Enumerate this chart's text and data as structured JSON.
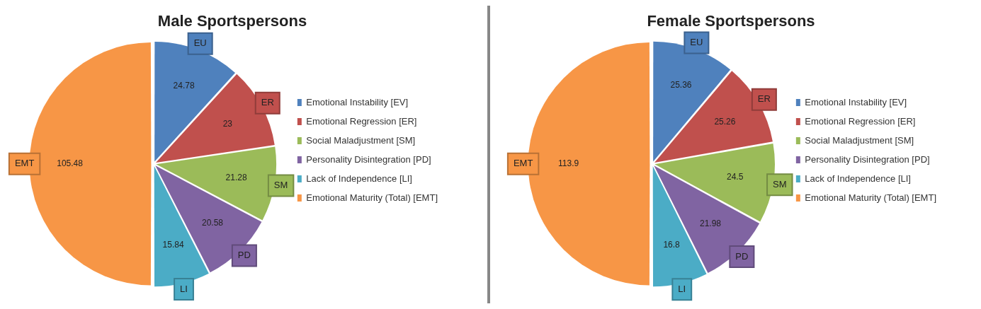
{
  "chart_data": [
    {
      "type": "pie",
      "title": "Male Sportspersons",
      "categories": [
        "Emotional Instability [EV]",
        "Emotional Regression [ER]",
        "Social Maladjustment [SM]",
        "Personality Disintegration [PD]",
        "Lack of Independence [LI]",
        "Emotional Maturity (Total) [EMT]"
      ],
      "values": [
        24.78,
        23,
        21.28,
        20.58,
        15.84,
        105.48
      ],
      "colors": [
        "#4f81bd",
        "#c0504d",
        "#9bbb59",
        "#8064a2",
        "#4bacc6",
        "#f79646"
      ],
      "annotations": [
        "EU",
        "ER",
        "SM",
        "PD",
        "LI",
        "EMT"
      ],
      "data_labels": true,
      "legend": "right"
    },
    {
      "type": "pie",
      "title": "Female Sportspersons",
      "categories": [
        "Emotional Instability [EV]",
        "Emotional Regression [ER]",
        "Social Maladjustment [SM]",
        "Personality Disintegration [PD]",
        "Lack of Independence [LI]",
        "Emotional Maturity (Total) [EMT]"
      ],
      "values": [
        25.36,
        25.26,
        24.5,
        21.98,
        16.8,
        113.9
      ],
      "colors": [
        "#4f81bd",
        "#c0504d",
        "#9bbb59",
        "#8064a2",
        "#4bacc6",
        "#f79646"
      ],
      "annotations": [
        "EU",
        "ER",
        "SM",
        "PD",
        "LI",
        "EMT"
      ],
      "data_labels": true,
      "legend": "right"
    }
  ]
}
